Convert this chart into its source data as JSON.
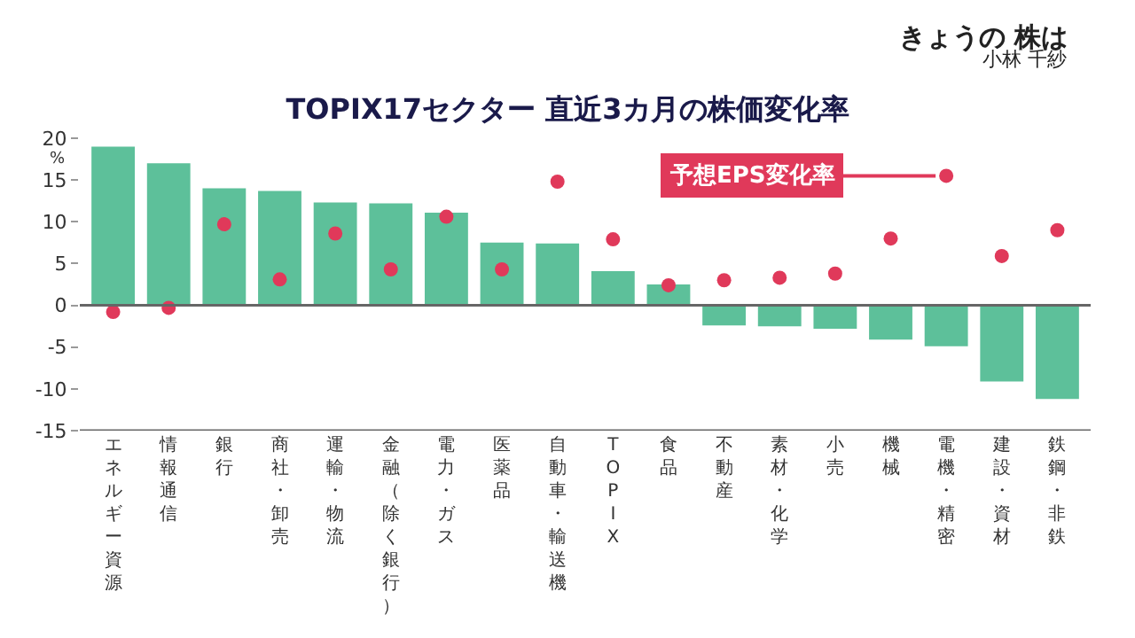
{
  "chart_data": {
    "type": "bar",
    "title": "TOPIX17セクター 直近3カ月の株価変化率",
    "ylabel": "%",
    "categories": [
      "エネルギー資源",
      "情報通信",
      "銀行",
      "商社・卸売",
      "運輸・物流",
      "金融（除く銀行）",
      "電力・ガス",
      "医薬品",
      "自動車・輸送機",
      "TOPIX",
      "食品",
      "不動産",
      "素材・化学",
      "小売",
      "機械",
      "電機・精密",
      "建設・資材",
      "鉄鋼・非鉄"
    ],
    "series": [
      {
        "color": "#5dc09a",
        "values": [
          19.0,
          17.0,
          14.0,
          13.7,
          12.3,
          12.2,
          11.1,
          7.5,
          7.4,
          4.1,
          2.5,
          -2.4,
          -2.5,
          -2.8,
          -4.1,
          -4.9,
          -9.1,
          -11.2
        ]
      },
      {
        "type": "scatter",
        "name": "予想EPS変化率",
        "color": "#e0395a",
        "values": [
          -0.8,
          -0.3,
          9.7,
          3.1,
          8.6,
          4.3,
          10.6,
          4.3,
          14.8,
          7.9,
          2.4,
          3.0,
          3.3,
          3.8,
          8.0,
          15.5,
          5.9,
          9.0
        ]
      }
    ],
    "marker": "circle",
    "ylim": [
      -15,
      20
    ],
    "ref_lines": [
      {
        "axis": "y",
        "value": 0
      }
    ],
    "yticks": [
      20,
      15,
      10,
      5,
      0,
      -5,
      -10,
      -15
    ],
    "legend": "top right",
    "annotations": [
      "きょうの 株は",
      "小林 千紗"
    ]
  }
}
